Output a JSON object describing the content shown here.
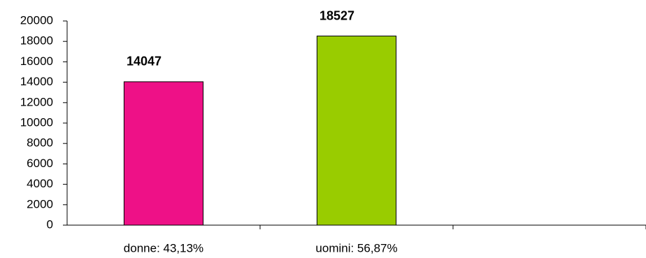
{
  "chart_data": {
    "type": "bar",
    "categories": [
      "donne: 43,13%",
      "uomini: 56,87%",
      null
    ],
    "values": [
      14047,
      18527,
      null
    ],
    "colors": [
      "#ee1187",
      "#99cc00",
      null
    ],
    "ylim": [
      0,
      20000
    ],
    "yticks": [
      0,
      2000,
      4000,
      6000,
      8000,
      10000,
      12000,
      14000,
      16000,
      18000,
      20000
    ],
    "grid": false
  }
}
